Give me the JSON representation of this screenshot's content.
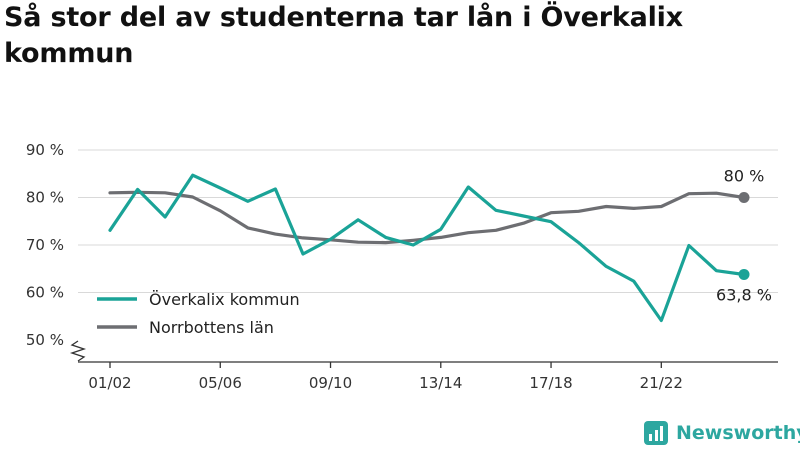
{
  "title": "Så stor del av studenterna tar lån i Överkalix kommun",
  "brand": {
    "name": "Newsworthy",
    "icon": "bar-chart-logo-icon",
    "color": "#2da7a0"
  },
  "chart_data": {
    "type": "line",
    "title": "Så stor del av studenterna tar lån i Överkalix kommun",
    "ylim": [
      50,
      90
    ],
    "y_ticks": [
      90,
      80,
      70,
      60,
      50
    ],
    "y_tick_labels": [
      "90 %",
      "80 %",
      "70 %",
      "60 %",
      "50 %"
    ],
    "y_axis_break": true,
    "x_tick_labels": [
      "01/02",
      "05/06",
      "09/10",
      "13/14",
      "17/18",
      "21/22"
    ],
    "x_tick_indices": [
      0,
      4,
      8,
      12,
      16,
      20
    ],
    "grid": "horizontal",
    "legend_position": "bottom-left",
    "x": [
      "01/02",
      "02/03",
      "03/04",
      "04/05",
      "05/06",
      "06/07",
      "07/08",
      "08/09",
      "09/10",
      "10/11",
      "11/12",
      "12/13",
      "13/14",
      "14/15",
      "15/16",
      "16/17",
      "17/18",
      "18/19",
      "19/20",
      "20/21",
      "21/22",
      "22/23",
      "23/24",
      "24/25"
    ],
    "series": [
      {
        "name": "Överkalix kommun",
        "color": "#1aa397",
        "end_label": "63,8 %",
        "values": [
          73.1,
          81.7,
          75.9,
          84.7,
          82.0,
          79.2,
          81.8,
          68.1,
          71.2,
          75.3,
          71.6,
          70.0,
          73.3,
          82.2,
          77.3,
          76.1,
          74.9,
          70.5,
          65.5,
          62.4,
          54.1,
          69.9,
          64.6,
          63.8
        ]
      },
      {
        "name": "Norrbottens län",
        "color": "#6d6e72",
        "end_label": "80 %",
        "values": [
          81.0,
          81.1,
          81.0,
          80.1,
          77.2,
          73.6,
          72.3,
          71.5,
          71.1,
          70.6,
          70.5,
          71.0,
          71.6,
          72.6,
          73.1,
          74.6,
          76.8,
          77.1,
          78.1,
          77.7,
          78.1,
          80.8,
          80.9,
          80.0
        ]
      }
    ]
  }
}
